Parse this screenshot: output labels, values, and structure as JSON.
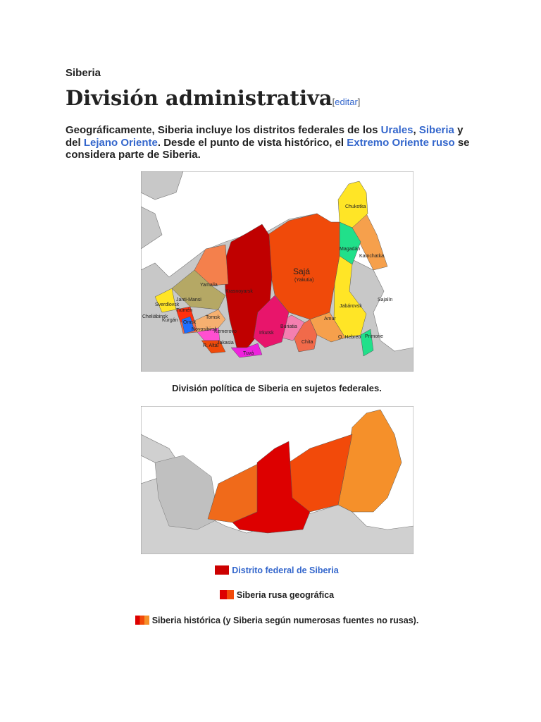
{
  "header": {
    "site": "Siberia"
  },
  "heading": {
    "title": "División administrativa",
    "edit_open": "[",
    "edit": "editar",
    "edit_close": "]"
  },
  "paragraph": [
    {
      "text": "Geográficamente, Siberia incluye los distritos federales de los "
    },
    {
      "text": "Urales",
      "link": true
    },
    {
      "text": ", "
    },
    {
      "text": "Siberia",
      "link": true
    },
    {
      "text": " y del "
    },
    {
      "text": "Lejano Oriente",
      "link": true
    },
    {
      "text": ". Desde el punto de vista histórico, el "
    },
    {
      "text": "Extremo Oriente ruso",
      "link": true
    },
    {
      "text": " se considera parte de Siberia."
    }
  ],
  "map1": {
    "labels": [
      "Chukotka",
      "Magadán",
      "Kamchatka",
      "Sajá",
      "(Yakutia)",
      "Sajalín",
      "Jabárovsk",
      "Amur",
      "Chita",
      "Buriatia",
      "Irkutsk",
      "Krasnoyarsk",
      "Yamalia",
      "Janti-Mansi",
      "Sverdlovsk",
      "Cheliábinsk",
      "Kurgán",
      "Tiumén",
      "Omsk",
      "Tomsk",
      "Novosibirsk",
      "Kemerovo",
      "Jakasia",
      "R. Altái",
      "Tuvá",
      "O. Hebreo",
      "Primorie"
    ],
    "caption": "División política de Siberia en sujetos federales."
  },
  "map2": {
    "legend": [
      {
        "text": "Distrito federal de Siberia",
        "link": true
      },
      {
        "text": "Siberia rusa geográfica"
      },
      {
        "text": "Siberia histórica (y Siberia según numerosas fuentes no rusas)."
      }
    ]
  }
}
